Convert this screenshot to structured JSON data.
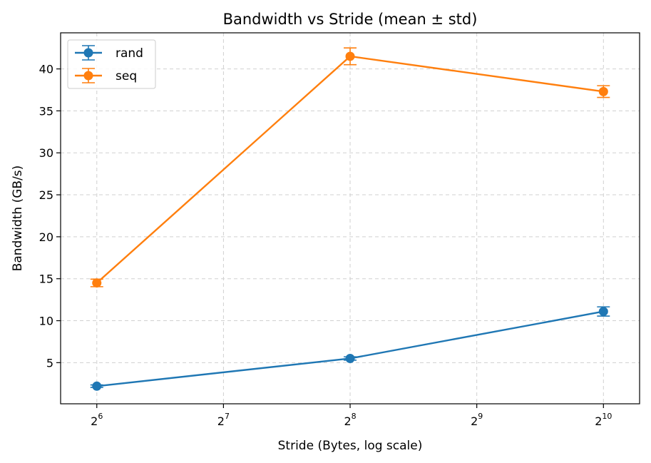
{
  "chart_data": {
    "type": "line",
    "title": "Bandwidth vs Stride (mean ± std)",
    "xlabel": "Stride (Bytes, log scale)",
    "ylabel": "Bandwidth (GB/s)",
    "xscale": "log2",
    "x": [
      64,
      256,
      1024
    ],
    "xlim": [
      52.5,
      1248
    ],
    "ylim": [
      0.1,
      44.3
    ],
    "x_ticks": [
      {
        "value": 64,
        "base": "2",
        "exp": "6"
      },
      {
        "value": 128,
        "base": "2",
        "exp": "7"
      },
      {
        "value": 256,
        "base": "2",
        "exp": "8"
      },
      {
        "value": 512,
        "base": "2",
        "exp": "9"
      },
      {
        "value": 1024,
        "base": "2",
        "exp": "10"
      }
    ],
    "y_ticks": [
      5,
      10,
      15,
      20,
      25,
      30,
      35,
      40
    ],
    "y_tick_labels": [
      "5",
      "10",
      "15",
      "20",
      "25",
      "30",
      "35",
      "40"
    ],
    "grid": true,
    "legend_position": "top-left",
    "series": [
      {
        "name": "rand",
        "color": "#1f77b4",
        "values": [
          2.2,
          5.5,
          11.1
        ],
        "std": [
          0.15,
          0.2,
          0.55
        ]
      },
      {
        "name": "seq",
        "color": "#ff7f0e",
        "values": [
          14.5,
          41.5,
          37.3
        ],
        "std": [
          0.45,
          1.0,
          0.7
        ]
      }
    ]
  }
}
